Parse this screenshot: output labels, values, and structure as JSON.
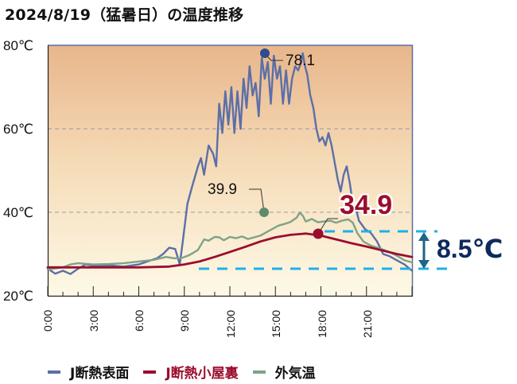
{
  "title": "2024/8/19（猛暑日）の温度推移",
  "chart_data": {
    "type": "line",
    "title": "2024/8/19（猛暑日）の温度推移",
    "xlabel": "",
    "ylabel": "",
    "x_tick_labels": [
      "0:00",
      "3:00",
      "6:00",
      "9:00",
      "12:00",
      "15:00",
      "18:00",
      "21:00"
    ],
    "y_tick_labels": [
      "80℃",
      "60℃",
      "40℃",
      "20℃"
    ],
    "ylim": [
      20,
      80
    ],
    "xlim_hours": [
      0,
      24
    ],
    "grid": "horizontal dashed at 40 and 60",
    "series": [
      {
        "name": "J断熱表面",
        "color": "#5b6fa8",
        "points_hours_temp": [
          [
            0,
            26.5
          ],
          [
            0.5,
            25.3
          ],
          [
            1,
            26
          ],
          [
            1.5,
            25.2
          ],
          [
            2,
            26.5
          ],
          [
            2.5,
            27.5
          ],
          [
            3,
            27.2
          ],
          [
            4,
            27.3
          ],
          [
            5,
            27
          ],
          [
            6,
            27.5
          ],
          [
            6.8,
            28.5
          ],
          [
            7.2,
            29
          ],
          [
            7.6,
            30
          ],
          [
            8,
            31.5
          ],
          [
            8.4,
            31.2
          ],
          [
            8.7,
            27.5
          ],
          [
            8.9,
            33
          ],
          [
            9.2,
            42
          ],
          [
            9.5,
            46
          ],
          [
            9.9,
            51
          ],
          [
            10.1,
            53
          ],
          [
            10.3,
            49
          ],
          [
            10.6,
            56
          ],
          [
            10.9,
            54
          ],
          [
            11.1,
            51
          ],
          [
            11.3,
            66
          ],
          [
            11.5,
            59
          ],
          [
            11.7,
            69
          ],
          [
            11.9,
            61
          ],
          [
            12.1,
            70
          ],
          [
            12.3,
            59
          ],
          [
            12.5,
            69
          ],
          [
            12.7,
            60
          ],
          [
            12.9,
            72
          ],
          [
            13.1,
            65
          ],
          [
            13.3,
            75
          ],
          [
            13.5,
            68
          ],
          [
            13.7,
            71
          ],
          [
            13.9,
            63
          ],
          [
            14.1,
            77
          ],
          [
            14.3,
            72
          ],
          [
            14.5,
            76
          ],
          [
            14.7,
            66
          ],
          [
            14.9,
            77.5
          ],
          [
            15.1,
            72
          ],
          [
            15.3,
            75
          ],
          [
            15.5,
            66
          ],
          [
            15.7,
            74
          ],
          [
            15.9,
            66
          ],
          [
            16.1,
            72
          ],
          [
            16.3,
            75
          ],
          [
            16.5,
            74
          ],
          [
            16.7,
            76
          ],
          [
            16.8,
            78.1
          ],
          [
            16.95,
            75
          ],
          [
            17.1,
            73
          ],
          [
            17.3,
            68
          ],
          [
            17.5,
            65
          ],
          [
            17.7,
            60
          ],
          [
            17.9,
            57
          ],
          [
            18.1,
            58
          ],
          [
            18.3,
            56
          ],
          [
            18.5,
            59
          ],
          [
            18.7,
            56
          ],
          [
            18.9,
            52
          ],
          [
            19.1,
            48
          ],
          [
            19.3,
            45
          ],
          [
            19.5,
            49
          ],
          [
            19.7,
            51
          ],
          [
            19.9,
            47
          ],
          [
            20.1,
            42
          ],
          [
            20.3,
            41
          ],
          [
            20.5,
            38
          ],
          [
            20.9,
            36
          ],
          [
            21.3,
            35
          ],
          [
            21.7,
            33
          ],
          [
            22.1,
            30
          ],
          [
            22.5,
            29.5
          ],
          [
            23,
            28.5
          ],
          [
            23.5,
            27.5
          ],
          [
            24,
            26
          ]
        ]
      },
      {
        "name": "J断熱小屋裏",
        "color": "#9b0d2e",
        "points_hours_temp": [
          [
            0,
            26.8
          ],
          [
            3,
            26.8
          ],
          [
            6,
            26.8
          ],
          [
            8,
            27
          ],
          [
            9,
            27.5
          ],
          [
            10,
            28.2
          ],
          [
            11,
            29.3
          ],
          [
            12,
            30.5
          ],
          [
            13,
            31.7
          ],
          [
            14,
            33
          ],
          [
            15,
            34
          ],
          [
            16,
            34.6
          ],
          [
            17,
            34.9
          ],
          [
            18,
            34.4
          ],
          [
            19,
            33.5
          ],
          [
            20,
            32.6
          ],
          [
            21,
            31.8
          ],
          [
            22,
            30.9
          ],
          [
            23,
            30
          ],
          [
            24,
            29.3
          ]
        ]
      },
      {
        "name": "外気温",
        "color": "#7fa287",
        "points_hours_temp": [
          [
            0,
            26.3
          ],
          [
            1,
            26.8
          ],
          [
            1.5,
            27.5
          ],
          [
            2,
            27.8
          ],
          [
            3,
            27.5
          ],
          [
            4,
            27.6
          ],
          [
            5,
            27.8
          ],
          [
            6,
            28.2
          ],
          [
            7,
            28.6
          ],
          [
            7.8,
            29.3
          ],
          [
            8.3,
            29
          ],
          [
            8.8,
            29
          ],
          [
            9.3,
            29.7
          ],
          [
            9.6,
            30.3
          ],
          [
            9.9,
            31
          ],
          [
            10.3,
            33.5
          ],
          [
            10.6,
            33.2
          ],
          [
            11,
            34.1
          ],
          [
            11.3,
            34
          ],
          [
            11.6,
            33.3
          ],
          [
            12,
            34.1
          ],
          [
            12.4,
            33.8
          ],
          [
            12.8,
            34.2
          ],
          [
            13.2,
            33.6
          ],
          [
            13.6,
            34
          ],
          [
            14,
            34.4
          ],
          [
            14.4,
            35.2
          ],
          [
            14.8,
            36
          ],
          [
            15.2,
            36.8
          ],
          [
            15.6,
            37.2
          ],
          [
            16,
            37.7
          ],
          [
            16.4,
            38.7
          ],
          [
            16.6,
            39.9
          ],
          [
            16.8,
            39.2
          ],
          [
            17,
            37.8
          ],
          [
            17.4,
            38.4
          ],
          [
            17.8,
            37.6
          ],
          [
            18.2,
            37.8
          ],
          [
            18.6,
            38
          ],
          [
            19,
            37.5
          ],
          [
            19.4,
            38
          ],
          [
            19.8,
            38.3
          ],
          [
            20.1,
            37.5
          ],
          [
            20.4,
            35
          ],
          [
            20.8,
            33
          ],
          [
            21.3,
            32
          ],
          [
            22,
            31.2
          ],
          [
            22.5,
            30.5
          ],
          [
            23,
            29.6
          ],
          [
            23.5,
            28.5
          ],
          [
            24,
            28
          ]
        ]
      }
    ],
    "annotations": [
      {
        "series": "J断熱表面",
        "hour": 16.8,
        "value": 78.1,
        "label": "78.1"
      },
      {
        "series": "外気温",
        "hour": 16.6,
        "value": 39.9,
        "label": "39.9"
      },
      {
        "series": "J断熱小屋裏",
        "hour": 17.8,
        "value": 34.9,
        "label": "34.9"
      },
      {
        "type": "difference",
        "from": 26.4,
        "to": 34.9,
        "label": "8.5℃"
      }
    ],
    "legend": [
      "J断熱表面",
      "J断熱小屋裏",
      "外気温"
    ],
    "legend_position": "bottom"
  },
  "axis": {
    "y_labels": [
      "80℃",
      "60℃",
      "40℃",
      "20℃"
    ],
    "x_labels": [
      "0:00",
      "3:00",
      "6:00",
      "9:00",
      "12:00",
      "15:00",
      "18:00",
      "21:00"
    ]
  },
  "annotations": {
    "peak_surface": "78.1",
    "peak_outdoor": "39.9",
    "peak_attic": "34.9",
    "difference": "8.5℃"
  },
  "legend": {
    "items": [
      {
        "label": "J断熱表面",
        "color": "#5b6fa8"
      },
      {
        "label": "J断熱小屋裏",
        "color": "#9b0d2e"
      },
      {
        "label": "外気温",
        "color": "#7fa287"
      }
    ]
  },
  "colors": {
    "surface": "#5b6fa8",
    "attic": "#9b0d2e",
    "outdoor": "#7fa287",
    "dash_guide": "#1fb0e8",
    "arrow": "#1f6585",
    "diff_text": "#0d2a5c",
    "bg_top": "#e9b98f",
    "bg_bottom": "#fdf8e4"
  }
}
